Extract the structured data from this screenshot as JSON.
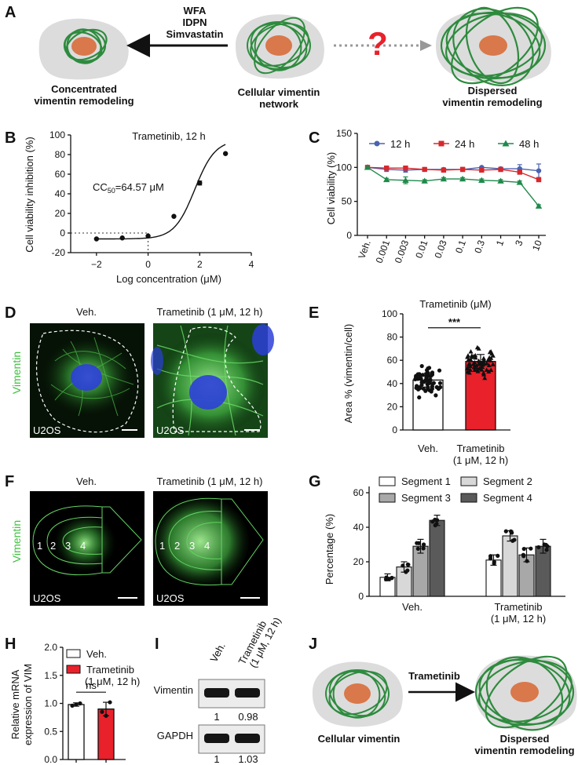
{
  "panels": [
    "A",
    "B",
    "C",
    "D",
    "E",
    "F",
    "G",
    "H",
    "I",
    "J"
  ],
  "panelA": {
    "drugs": [
      "WFA",
      "IDPN",
      "Simvastatin"
    ],
    "left_caption": [
      "Concentrated",
      "vimentin remodeling"
    ],
    "center_caption": [
      "Cellular vimentin",
      "network"
    ],
    "right_caption": [
      "Dispersed",
      "vimentin remodeling"
    ],
    "question": "?"
  },
  "panelB": {
    "title": "Trametinib, 12 h",
    "annotation_main": "CC",
    "annotation_sub": "50",
    "annotation_rest": "=64.57 μM",
    "xlabel": "Log concentration (μM)",
    "ylabel": "Cell viability inhibition (%)"
  },
  "panelC": {
    "xlabel": "Trametinib (μM)",
    "ylabel": "Cell viability (%)"
  },
  "panelD": {
    "col_labels": [
      "Veh.",
      "Trametinib (1 μM, 12 h)"
    ],
    "stain": "Vimentin",
    "cell_line": "U2OS"
  },
  "panelE": {
    "ylabel": "Area % (vimentin/cell)",
    "significance": "***"
  },
  "panelF": {
    "col_labels": [
      "Veh.",
      "Trametinib (1 μM, 12 h)"
    ],
    "stain": "Vimentin",
    "cell_line": "U2OS",
    "segments": [
      "1",
      "2",
      "3",
      "4"
    ]
  },
  "panelG": {
    "ylabel": "Percentage (%)"
  },
  "panelH": {
    "ylabel_line1": "Relative mRNA",
    "ylabel_line2": "expression of VIM",
    "legend": [
      "Veh.",
      "Trametinib",
      "(1 μM, 12 h)"
    ],
    "significance": "ns"
  },
  "panelI": {
    "lanes": [
      "Veh.",
      "Trametinib",
      "(1 μM, 12 h)"
    ],
    "rows": [
      {
        "name": "Vimentin",
        "values": [
          "1",
          "0.98"
        ]
      },
      {
        "name": "GAPDH",
        "values": [
          "1",
          "1.03"
        ]
      }
    ]
  },
  "panelJ": {
    "arrow_label": "Trametinib",
    "left_caption": [
      "Cellular vimentin"
    ],
    "right_caption": [
      "Dispersed",
      "vimentin remodeling"
    ]
  },
  "colors": {
    "veh": "#ffffff",
    "tram": "#e8212b",
    "blue": "#4a63b0",
    "red": "#d6282e",
    "green": "#1e8a4a",
    "nucleus": "#d9784a",
    "cell": "#dcdcdc",
    "fiber": "#2e8b3e"
  },
  "chart_data": [
    {
      "id": "B",
      "type": "scatter",
      "title": "Trametinib, 12 h",
      "xlabel": "Log concentration (μM)",
      "ylabel": "Cell viability inhibition (%)",
      "xlim": [
        -3,
        4
      ],
      "ylim": [
        -20,
        100
      ],
      "xticks": [
        -2,
        0,
        2,
        4
      ],
      "yticks": [
        -20,
        0,
        20,
        40,
        60,
        80,
        100
      ],
      "x": [
        -2,
        -1,
        0,
        1,
        2,
        3
      ],
      "y": [
        -6,
        -5,
        -3,
        17,
        51,
        81
      ],
      "err": [
        0,
        0,
        0,
        0,
        2,
        0
      ],
      "fit": "sigmoidal",
      "CC50": "64.57 μM"
    },
    {
      "id": "C",
      "type": "line",
      "xlabel": "Trametinib (μM)",
      "ylabel": "Cell viability (%)",
      "categories": [
        "Veh.",
        "0.001",
        "0.003",
        "0.01",
        "0.03",
        "0.1",
        "0.3",
        "1",
        "3",
        "10"
      ],
      "ylim": [
        0,
        150
      ],
      "yticks": [
        0,
        50,
        100,
        150
      ],
      "series": [
        {
          "name": "12 h",
          "color": "#4a63b0",
          "marker": "circle",
          "values": [
            100,
            97,
            96,
            97,
            97,
            97,
            100,
            98,
            98,
            95
          ],
          "err": [
            0,
            3,
            3,
            2,
            2,
            2,
            1,
            2,
            6,
            10
          ]
        },
        {
          "name": "24 h",
          "color": "#d6282e",
          "marker": "square",
          "values": [
            100,
            99,
            99,
            97,
            96,
            97,
            96,
            97,
            93,
            82
          ],
          "err": [
            0,
            3,
            2,
            2,
            3,
            3,
            3,
            3,
            3,
            3
          ]
        },
        {
          "name": "48 h",
          "color": "#1e8a4a",
          "marker": "triangle",
          "values": [
            100,
            82,
            81,
            80,
            83,
            83,
            81,
            80,
            78,
            43
          ],
          "err": [
            0,
            2,
            5,
            2,
            2,
            2,
            2,
            2,
            2,
            2
          ]
        }
      ]
    },
    {
      "id": "E",
      "type": "bar",
      "ylabel": "Area % (vimentin/cell)",
      "categories": [
        "Veh.",
        "Trametinib"
      ],
      "category_sublabels": [
        "",
        "(1 μM, 12 h)"
      ],
      "values": [
        43,
        59
      ],
      "err": [
        6,
        6
      ],
      "ylim": [
        0,
        100
      ],
      "yticks": [
        0,
        20,
        40,
        60,
        80,
        100
      ],
      "significance": "***"
    },
    {
      "id": "G",
      "type": "bar",
      "ylabel": "Percentage (%)",
      "categories": [
        "Veh.",
        "Trametinib"
      ],
      "category_sublabels": [
        "",
        "(1 μM, 12 h)"
      ],
      "ylim": [
        0,
        60
      ],
      "yticks": [
        0,
        20,
        40,
        60
      ],
      "series": [
        {
          "name": "Segment 1",
          "color": "#ffffff",
          "values": [
            11,
            21
          ],
          "err": [
            2,
            3
          ]
        },
        {
          "name": "Segment 2",
          "color": "#d8d8d8",
          "values": [
            17,
            35
          ],
          "err": [
            3,
            3
          ]
        },
        {
          "name": "Segment 3",
          "color": "#a8a8a8",
          "values": [
            29,
            24
          ],
          "err": [
            4,
            4
          ]
        },
        {
          "name": "Segment 4",
          "color": "#5a5a5a",
          "values": [
            44,
            29
          ],
          "err": [
            3,
            4
          ]
        }
      ]
    },
    {
      "id": "H",
      "type": "bar",
      "ylabel": "Relative mRNA expression of VIM",
      "categories": [
        "Veh.",
        "Trametinib"
      ],
      "values": [
        0.98,
        0.9
      ],
      "err": [
        0.03,
        0.12
      ],
      "ylim": [
        0,
        2.0
      ],
      "yticks": [
        0.0,
        0.5,
        1.0,
        1.5,
        2.0
      ],
      "significance": "ns"
    }
  ]
}
